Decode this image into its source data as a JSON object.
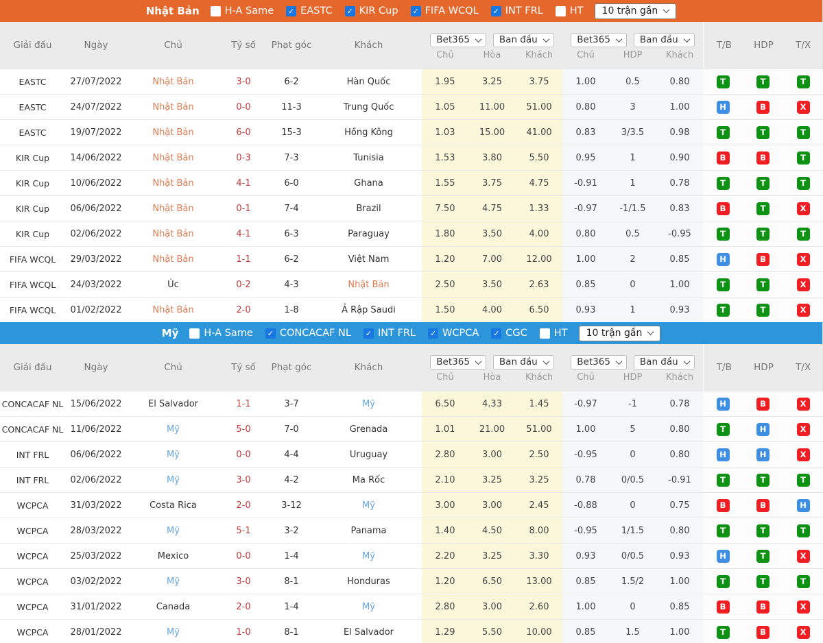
{
  "table_header": {
    "league": "Giải đấu",
    "date": "Ngày",
    "home": "Chủ",
    "score": "Tỷ số",
    "corners": "Phạt góc",
    "away": "Khách",
    "bookmaker": "Bet365",
    "initial": "Ban đầu",
    "odds_1x2_cols": [
      "Chủ",
      "Hòa",
      "Khách"
    ],
    "handicap_cols": [
      "Chủ",
      "HDP",
      "Khách"
    ],
    "result_cols": [
      "T/B",
      "HDP",
      "T/X"
    ]
  },
  "sections": [
    {
      "team": "Nhật Bản",
      "bar_color": "#E5672B",
      "team_color": "#DE7B52",
      "matches_select": "10 trận gần",
      "filters": [
        {
          "label": "H-A Same",
          "checked": false
        },
        {
          "label": "EASTC",
          "checked": true
        },
        {
          "label": "KIR Cup",
          "checked": true
        },
        {
          "label": "FIFA WCQL",
          "checked": true
        },
        {
          "label": "INT FRL",
          "checked": true
        },
        {
          "label": "HT",
          "checked": false
        }
      ],
      "rows": [
        {
          "league": "EASTC",
          "date": "27/07/2022",
          "home": "Nhật Bản",
          "home_is_team": true,
          "score": "3-0",
          "corners": "6-2",
          "away": "Hàn Quốc",
          "away_is_team": false,
          "odds_1x2": [
            "1.95",
            "3.25",
            "3.75"
          ],
          "handicap": [
            "1.00",
            "0.5",
            "0.80"
          ],
          "results": [
            "T",
            "T",
            "T"
          ]
        },
        {
          "league": "EASTC",
          "date": "24/07/2022",
          "home": "Nhật Bản",
          "home_is_team": true,
          "score": "0-0",
          "corners": "11-3",
          "away": "Trung Quốc",
          "away_is_team": false,
          "odds_1x2": [
            "1.05",
            "11.00",
            "51.00"
          ],
          "handicap": [
            "0.80",
            "3",
            "1.00"
          ],
          "results": [
            "H",
            "B",
            "X"
          ]
        },
        {
          "league": "EASTC",
          "date": "19/07/2022",
          "home": "Nhật Bản",
          "home_is_team": true,
          "score": "6-0",
          "corners": "15-3",
          "away": "Hồng Kông",
          "away_is_team": false,
          "odds_1x2": [
            "1.03",
            "15.00",
            "41.00"
          ],
          "handicap": [
            "0.83",
            "3/3.5",
            "0.98"
          ],
          "results": [
            "T",
            "T",
            "T"
          ]
        },
        {
          "league": "KIR Cup",
          "date": "14/06/2022",
          "home": "Nhật Bản",
          "home_is_team": true,
          "score": "0-3",
          "corners": "7-3",
          "away": "Tunisia",
          "away_is_team": false,
          "odds_1x2": [
            "1.53",
            "3.80",
            "5.50"
          ],
          "handicap": [
            "0.95",
            "1",
            "0.90"
          ],
          "results": [
            "B",
            "B",
            "T"
          ]
        },
        {
          "league": "KIR Cup",
          "date": "10/06/2022",
          "home": "Nhật Bản",
          "home_is_team": true,
          "score": "4-1",
          "corners": "6-0",
          "away": "Ghana",
          "away_is_team": false,
          "odds_1x2": [
            "1.55",
            "3.75",
            "4.75"
          ],
          "handicap": [
            "-0.91",
            "1",
            "0.78"
          ],
          "results": [
            "T",
            "T",
            "T"
          ]
        },
        {
          "league": "KIR Cup",
          "date": "06/06/2022",
          "home": "Nhật Bản",
          "home_is_team": true,
          "score": "0-1",
          "corners": "7-4",
          "away": "Brazil",
          "away_is_team": false,
          "odds_1x2": [
            "7.50",
            "4.75",
            "1.33"
          ],
          "handicap": [
            "-0.97",
            "-1/1.5",
            "0.83"
          ],
          "results": [
            "B",
            "T",
            "X"
          ]
        },
        {
          "league": "KIR Cup",
          "date": "02/06/2022",
          "home": "Nhật Bản",
          "home_is_team": true,
          "score": "4-1",
          "corners": "6-3",
          "away": "Paraguay",
          "away_is_team": false,
          "odds_1x2": [
            "1.80",
            "3.50",
            "4.00"
          ],
          "handicap": [
            "0.80",
            "0.5",
            "-0.95"
          ],
          "results": [
            "T",
            "T",
            "T"
          ]
        },
        {
          "league": "FIFA WCQL",
          "date": "29/03/2022",
          "home": "Nhật Bản",
          "home_is_team": true,
          "score": "1-1",
          "corners": "6-2",
          "away": "Việt Nam",
          "away_is_team": false,
          "odds_1x2": [
            "1.20",
            "7.00",
            "12.00"
          ],
          "handicap": [
            "1.00",
            "2",
            "0.85"
          ],
          "results": [
            "H",
            "B",
            "X"
          ]
        },
        {
          "league": "FIFA WCQL",
          "date": "24/03/2022",
          "home": "Úc",
          "home_is_team": false,
          "score": "0-2",
          "corners": "4-3",
          "away": "Nhật Bản",
          "away_is_team": true,
          "odds_1x2": [
            "2.50",
            "3.50",
            "2.63"
          ],
          "handicap": [
            "0.85",
            "0",
            "1.00"
          ],
          "results": [
            "T",
            "T",
            "X"
          ]
        },
        {
          "league": "FIFA WCQL",
          "date": "01/02/2022",
          "home": "Nhật Bản",
          "home_is_team": true,
          "score": "2-0",
          "corners": "1-8",
          "away": "Ả Rập Saudi",
          "away_is_team": false,
          "odds_1x2": [
            "1.50",
            "4.00",
            "6.50"
          ],
          "handicap": [
            "0.93",
            "1",
            "0.93"
          ],
          "results": [
            "T",
            "T",
            "X"
          ]
        }
      ]
    },
    {
      "team": "Mỹ",
      "bar_color": "#2D95D9",
      "team_color": "#64A4DC",
      "matches_select": "10 trận gần",
      "filters": [
        {
          "label": "H-A Same",
          "checked": false
        },
        {
          "label": "CONCACAF NL",
          "checked": true
        },
        {
          "label": "INT FRL",
          "checked": true
        },
        {
          "label": "WCPCA",
          "checked": true
        },
        {
          "label": "CGC",
          "checked": true
        },
        {
          "label": "HT",
          "checked": false
        }
      ],
      "rows": [
        {
          "league": "CONCACAF NL",
          "date": "15/06/2022",
          "home": "El Salvador",
          "home_is_team": false,
          "score": "1-1",
          "corners": "3-7",
          "away": "Mỹ",
          "away_is_team": true,
          "odds_1x2": [
            "6.50",
            "4.33",
            "1.45"
          ],
          "handicap": [
            "-0.97",
            "-1",
            "0.78"
          ],
          "results": [
            "H",
            "B",
            "X"
          ]
        },
        {
          "league": "CONCACAF NL",
          "date": "11/06/2022",
          "home": "Mỹ",
          "home_is_team": true,
          "score": "5-0",
          "corners": "7-0",
          "away": "Grenada",
          "away_is_team": false,
          "odds_1x2": [
            "1.01",
            "21.00",
            "51.00"
          ],
          "handicap": [
            "1.00",
            "5",
            "0.80"
          ],
          "results": [
            "T",
            "H",
            "X"
          ]
        },
        {
          "league": "INT FRL",
          "date": "06/06/2022",
          "home": "Mỹ",
          "home_is_team": true,
          "score": "0-0",
          "corners": "4-4",
          "away": "Uruguay",
          "away_is_team": false,
          "odds_1x2": [
            "2.80",
            "3.00",
            "2.50"
          ],
          "handicap": [
            "-0.95",
            "0",
            "0.80"
          ],
          "results": [
            "H",
            "H",
            "X"
          ]
        },
        {
          "league": "INT FRL",
          "date": "02/06/2022",
          "home": "Mỹ",
          "home_is_team": true,
          "score": "3-0",
          "corners": "4-2",
          "away": "Ma Rốc",
          "away_is_team": false,
          "odds_1x2": [
            "2.10",
            "3.25",
            "3.25"
          ],
          "handicap": [
            "0.78",
            "0/0.5",
            "-0.91"
          ],
          "results": [
            "T",
            "T",
            "T"
          ]
        },
        {
          "league": "WCPCA",
          "date": "31/03/2022",
          "home": "Costa Rica",
          "home_is_team": false,
          "score": "2-0",
          "corners": "3-12",
          "away": "Mỹ",
          "away_is_team": true,
          "odds_1x2": [
            "3.00",
            "3.00",
            "2.45"
          ],
          "handicap": [
            "-0.88",
            "0",
            "0.75"
          ],
          "results": [
            "B",
            "B",
            "H"
          ]
        },
        {
          "league": "WCPCA",
          "date": "28/03/2022",
          "home": "Mỹ",
          "home_is_team": true,
          "score": "5-1",
          "corners": "3-2",
          "away": "Panama",
          "away_is_team": false,
          "odds_1x2": [
            "1.40",
            "4.50",
            "8.00"
          ],
          "handicap": [
            "-0.95",
            "1/1.5",
            "0.80"
          ],
          "results": [
            "T",
            "T",
            "T"
          ]
        },
        {
          "league": "WCPCA",
          "date": "25/03/2022",
          "home": "Mexico",
          "home_is_team": false,
          "score": "0-0",
          "corners": "1-4",
          "away": "Mỹ",
          "away_is_team": true,
          "odds_1x2": [
            "2.20",
            "3.25",
            "3.30"
          ],
          "handicap": [
            "0.93",
            "0/0.5",
            "0.93"
          ],
          "results": [
            "H",
            "T",
            "X"
          ]
        },
        {
          "league": "WCPCA",
          "date": "03/02/2022",
          "home": "Mỹ",
          "home_is_team": true,
          "score": "3-0",
          "corners": "8-1",
          "away": "Honduras",
          "away_is_team": false,
          "odds_1x2": [
            "1.20",
            "6.50",
            "13.00"
          ],
          "handicap": [
            "0.85",
            "1.5/2",
            "1.00"
          ],
          "results": [
            "T",
            "T",
            "T"
          ]
        },
        {
          "league": "WCPCA",
          "date": "31/01/2022",
          "home": "Canada",
          "home_is_team": false,
          "score": "2-0",
          "corners": "1-4",
          "away": "Mỹ",
          "away_is_team": true,
          "odds_1x2": [
            "2.80",
            "3.00",
            "2.60"
          ],
          "handicap": [
            "1.00",
            "0",
            "0.85"
          ],
          "results": [
            "B",
            "B",
            "X"
          ]
        },
        {
          "league": "WCPCA",
          "date": "28/01/2022",
          "home": "Mỹ",
          "home_is_team": true,
          "score": "1-0",
          "corners": "8-1",
          "away": "El Salvador",
          "away_is_team": false,
          "odds_1x2": [
            "1.29",
            "5.50",
            "10.00"
          ],
          "handicap": [
            "0.85",
            "1.5",
            "1.00"
          ],
          "results": [
            "T",
            "B",
            "X"
          ]
        }
      ]
    }
  ]
}
